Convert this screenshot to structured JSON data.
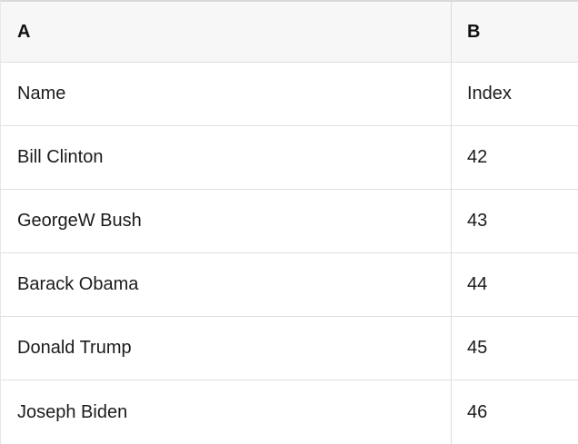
{
  "colors": {
    "header_bg": "#f7f7f7",
    "row_border": "#e0e0e0",
    "top_border": "#d9d9d9",
    "column_divider": "#dcdcdc",
    "text": "#1b1b1b"
  },
  "table": {
    "column_headers": [
      {
        "label": "A"
      },
      {
        "label": "B"
      }
    ],
    "rows": [
      {
        "a": "Name",
        "b": "Index"
      },
      {
        "a": "Bill Clinton",
        "b": "42"
      },
      {
        "a": "GeorgeW Bush",
        "b": "43"
      },
      {
        "a": "Barack Obama",
        "b": "44"
      },
      {
        "a": "Donald Trump",
        "b": "45"
      },
      {
        "a": "Joseph Biden",
        "b": "46"
      }
    ]
  }
}
